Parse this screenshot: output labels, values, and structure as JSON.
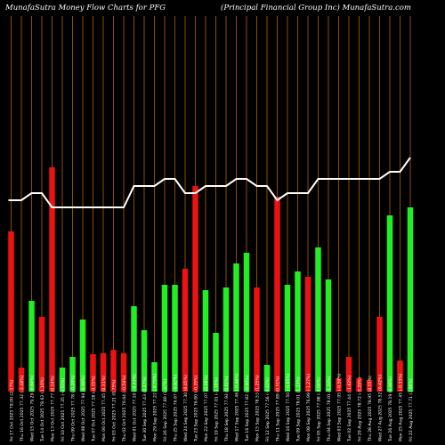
{
  "header": {
    "left": "MunafaSutra  Money Flow  Charts for PFG",
    "right": "(Principal Financial Group Inc) MunafaSutra.com"
  },
  "chart_data": {
    "type": "bar",
    "colors": {
      "up": "#22ee22",
      "down": "#ee1111",
      "line": "#ffffff",
      "grid": "#b36200",
      "background": "#000000"
    },
    "bars": [
      {
        "label": "Fri 17 Oct 2025",
        "value": 30.0,
        "dir": "down"
      },
      {
        "label": "Thu 16 Oct 2025",
        "value": 4.5,
        "dir": "down"
      },
      {
        "label": "Wed 15 Oct 2025",
        "value": 17.0,
        "dir": "up"
      },
      {
        "label": "Tue 14 Oct 2025",
        "value": 14.0,
        "dir": "down"
      },
      {
        "label": "Mon 13 Oct 2025",
        "value": 42.0,
        "dir": "down"
      },
      {
        "label": "Fri 10 Oct 2025",
        "value": 4.5,
        "dir": "up"
      },
      {
        "label": "Thu 09 Oct 2025",
        "value": 6.5,
        "dir": "up"
      },
      {
        "label": "Wed 08 Oct 2025",
        "value": 13.5,
        "dir": "up"
      },
      {
        "label": "Tue 07 Oct 2025",
        "value": 7.0,
        "dir": "down"
      },
      {
        "label": "Mon 06 Oct 2025",
        "value": 7.2,
        "dir": "down"
      },
      {
        "label": "Fri 03 Oct 2025",
        "value": 7.8,
        "dir": "down"
      },
      {
        "label": "Thu 02 Oct 2025",
        "value": 7.2,
        "dir": "down"
      },
      {
        "label": "Wed 01 Oct 2025",
        "value": 16.0,
        "dir": "up"
      },
      {
        "label": "Tue 30 Sep 2025",
        "value": 11.5,
        "dir": "up"
      },
      {
        "label": "Mon 29 Sep 2025",
        "value": 5.5,
        "dir": "up"
      },
      {
        "label": "Fri 26 Sep 2025",
        "value": 20.0,
        "dir": "up"
      },
      {
        "label": "Thu 25 Sep 2025",
        "value": 20.0,
        "dir": "up"
      },
      {
        "label": "Wed 24 Sep 2025",
        "value": 23.0,
        "dir": "down"
      },
      {
        "label": "Tue 23 Sep 2025",
        "value": 38.5,
        "dir": "down"
      },
      {
        "label": "Mon 22 Sep 2025",
        "value": 19.0,
        "dir": "up"
      },
      {
        "label": "Fri 19 Sep 2025",
        "value": 11.0,
        "dir": "up"
      },
      {
        "label": "Thu 18 Sep 2025",
        "value": 19.5,
        "dir": "up"
      },
      {
        "label": "Wed 17 Sep 2025",
        "value": 24.0,
        "dir": "up"
      },
      {
        "label": "Tue 16 Sep 2025",
        "value": 26.0,
        "dir": "up"
      },
      {
        "label": "Mon 15 Sep 2025",
        "value": 19.5,
        "dir": "down"
      },
      {
        "label": "Fri 12 Sep 2025",
        "value": 5.0,
        "dir": "up"
      },
      {
        "label": "Thu 11 Sep 2025",
        "value": 36.5,
        "dir": "down"
      },
      {
        "label": "Wed 10 Sep 2025",
        "value": 20.0,
        "dir": "up"
      },
      {
        "label": "Tue 09 Sep 2025",
        "value": 22.5,
        "dir": "up"
      },
      {
        "label": "Mon 08 Sep 2025",
        "value": 21.5,
        "dir": "down"
      },
      {
        "label": "Fri 05 Sep 2025",
        "value": 27.0,
        "dir": "up"
      },
      {
        "label": "Thu 04 Sep 2025",
        "value": 21.0,
        "dir": "up"
      },
      {
        "label": "Wed 03 Sep 2025",
        "value": 2.5,
        "dir": "down"
      },
      {
        "label": "Tue 02 Sep 2025",
        "value": 6.5,
        "dir": "down"
      },
      {
        "label": "Fri 29 Aug 2025",
        "value": 2.5,
        "dir": "down"
      },
      {
        "label": "Thu 28 Aug 2025",
        "value": 2.2,
        "dir": "down"
      },
      {
        "label": "Wed 27 Aug 2025",
        "value": 14.0,
        "dir": "down"
      },
      {
        "label": "Tue 26 Aug 2025",
        "value": 33.0,
        "dir": "up"
      },
      {
        "label": "Mon 25 Aug 2025",
        "value": 5.8,
        "dir": "down"
      },
      {
        "label": "Fri 22 Aug 2025",
        "value": 34.5,
        "dir": "up"
      }
    ],
    "price_line": [
      62,
      62,
      63,
      63,
      61,
      61,
      61,
      61,
      61,
      61,
      61,
      61,
      64,
      64,
      64,
      65,
      65,
      63,
      63,
      64,
      64,
      64,
      65,
      65,
      64,
      64,
      62,
      63,
      63,
      63,
      65,
      65,
      65,
      65,
      65,
      65,
      65,
      66,
      66,
      68
    ],
    "tick_labels": [
      "Fri 17 Oct 2025 79.00 (2.17%)",
      "Thu 16 Oct 2025 77.32 (-2.48%)",
      "Wed 15 Oct 2025 79.29 (0.84%)",
      "Tue 14 Oct 2025 78.63 (1.10%)",
      "Mon 13 Oct 2025 77.77 (0.54%)",
      "Fri 10 Oct 2025 77.35 (-0.55%)",
      "Thu 09 Oct 2025 77.78 (-0.20%)",
      "Wed 08 Oct 2025 77.94 (0.99%)",
      "Tue 07 Oct 2025 77.18 (-0.35%)",
      "Mon 06 Oct 2025 77.45 (0.31%)",
      "Fri 03 Oct 2025 77.21 (0.75%)",
      "Thu 02 Oct 2025 76.64 (-0.59%)",
      "Wed 01 Oct 2025 77.10 (-0.43%)",
      "Tue 30 Sep 2025 77.43 (0.27%)",
      "Mon 29 Sep 2025 77.22 (-0.75%)",
      "Fri 26 Sep 2025 77.80 (1.47%)",
      "Thu 25 Sep 2025 76.67 (-0.82%)",
      "Wed 24 Sep 2025 77.30 (0.65%)",
      "Tue 23 Sep 2025 76.80 (-0.35%)",
      "Mon 22 Sep 2025 77.07 (0.08%)",
      "Fri 19 Sep 2025 77.01 (-1.18%)",
      "Thu 18 Sep 2025 77.93 (0.61%)",
      "Wed 17 Sep 2025 77.46 (-0.46%)",
      "Tue 16 Sep 2025 77.82 (-0.90%)",
      "Mon 15 Sep 2025 78.53 (1.25%)",
      "Fri 12 Sep 2025 77.56 (-0.42%)",
      "Thu 11 Sep 2025 77.89 (0.51%)",
      "Wed 10 Sep 2025 77.50 (-0.65%)",
      "Tue 09 Sep 2025 78.01 (1.33%)",
      "Mon 08 Sep 2025 76.99 (-1.27%)",
      "Fri 05 Sep 2025 77.98 (-0.04%)",
      "Thu 04 Sep 2025 78.01 (1.24%)",
      "Wed 03 Sep 2025 77.05 (-0.50%)",
      "Tue 02 Sep 2025 77.44 (-1.62%)",
      "Fri 29 Aug 2025 78.72 (-0.29%)",
      "Thu 28 Aug 2025 78.95 (0.55%)",
      "Wed 27 Aug 2025 78.52 (0.42%)",
      "Tue 26 Aug 2025 78.19 (0.96%)",
      "Mon 25 Aug 2025 77.45 (-0.33%)",
      "Fri 22 Aug 2025 77.71 (3.08%)"
    ]
  }
}
